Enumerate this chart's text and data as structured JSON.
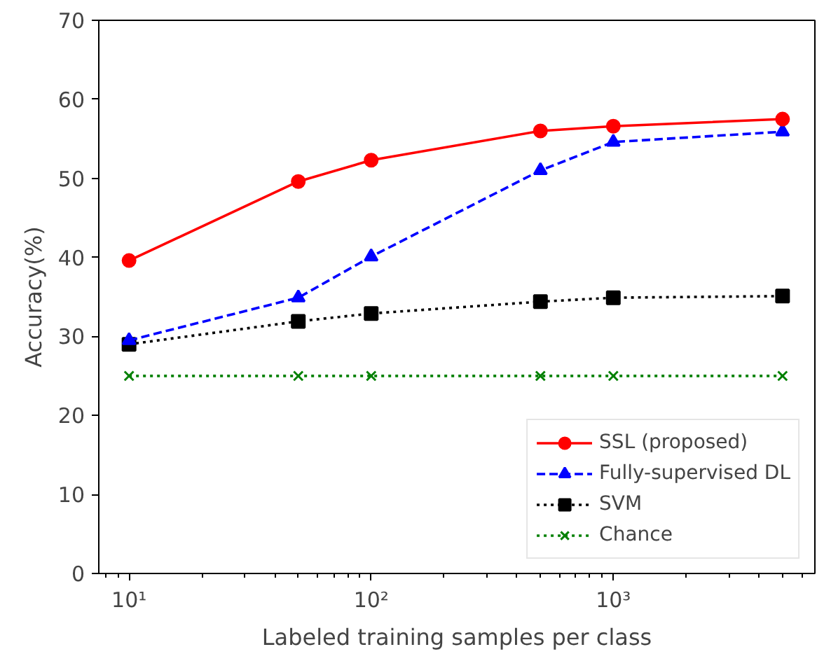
{
  "chart_data": {
    "type": "line",
    "xlabel": "Labeled training samples per class",
    "ylabel": "Accuracy(%)",
    "x": [
      10,
      50,
      100,
      500,
      1000,
      5000
    ],
    "series": [
      {
        "name": "SSL (proposed)",
        "color": "#ff0000",
        "values": [
          39.6,
          49.6,
          52.3,
          56.0,
          56.6,
          57.5
        ],
        "marker": "circle",
        "line_style": "solid"
      },
      {
        "name": "Fully-supervised DL",
        "color": "#0000ff",
        "values": [
          29.5,
          34.9,
          40.1,
          51.0,
          54.6,
          55.9
        ],
        "marker": "triangle",
        "line_style": "dashed"
      },
      {
        "name": "SVM",
        "color": "#000000",
        "values": [
          29.0,
          31.9,
          32.9,
          34.4,
          34.9,
          35.1
        ],
        "marker": "square",
        "line_style": "dotted"
      },
      {
        "name": "Chance",
        "color": "#008000",
        "values": [
          25,
          25,
          25,
          25,
          25,
          25
        ],
        "marker": "cross",
        "line_style": "dotted"
      }
    ],
    "log": "x",
    "xlim": [
      7.5,
      6800
    ],
    "xticks": [
      {
        "value": 10,
        "label": "10¹"
      },
      {
        "value": 100,
        "label": "10²"
      },
      {
        "value": 1000,
        "label": "10³"
      }
    ],
    "ylim": [
      0,
      70
    ],
    "yticks": [
      0,
      10,
      20,
      30,
      40,
      50,
      60,
      70
    ],
    "grid": false,
    "legend": "bottom right"
  }
}
